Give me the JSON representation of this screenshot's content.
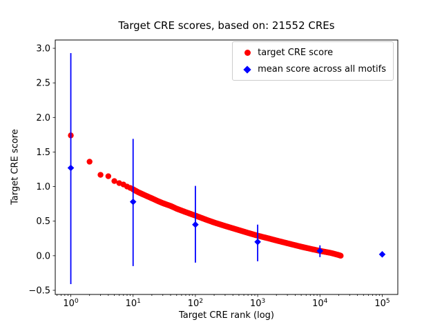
{
  "chart_data": {
    "type": "scatter",
    "title": "Target CRE scores, based on: 21552 CREs",
    "xlabel": "Target CRE rank (log)",
    "ylabel": "Target CRE score",
    "x_scale": "log",
    "grid": false,
    "background": "#ffffff",
    "total_cres": 21552,
    "xlim_log10": [
      -0.25,
      5.25
    ],
    "ylim": [
      -0.56,
      3.12
    ],
    "x_ticks": [
      1,
      10,
      100,
      1000,
      10000,
      100000
    ],
    "y_ticks": [
      -0.5,
      0.0,
      0.5,
      1.0,
      1.5,
      2.0,
      2.5,
      3.0
    ],
    "legend": {
      "position": "upper right"
    },
    "series": [
      {
        "name": "target CRE score",
        "marker": "circle",
        "color": "#ff0000",
        "sampling": "anchor points read from the dense 21552-point rank curve",
        "points": [
          [
            1,
            1.74
          ],
          [
            2,
            1.36
          ],
          [
            3,
            1.17
          ],
          [
            4,
            1.15
          ],
          [
            5,
            1.08
          ],
          [
            6,
            1.05
          ],
          [
            7,
            1.03
          ],
          [
            8,
            1.0
          ],
          [
            9,
            0.98
          ],
          [
            10,
            0.96
          ],
          [
            12,
            0.92
          ],
          [
            15,
            0.88
          ],
          [
            20,
            0.83
          ],
          [
            25,
            0.79
          ],
          [
            30,
            0.76
          ],
          [
            40,
            0.72
          ],
          [
            50,
            0.68
          ],
          [
            70,
            0.63
          ],
          [
            100,
            0.58
          ],
          [
            150,
            0.52
          ],
          [
            200,
            0.48
          ],
          [
            300,
            0.43
          ],
          [
            500,
            0.37
          ],
          [
            700,
            0.33
          ],
          [
            1000,
            0.29
          ],
          [
            1500,
            0.25
          ],
          [
            2000,
            0.22
          ],
          [
            3000,
            0.18
          ],
          [
            5000,
            0.13
          ],
          [
            7000,
            0.1
          ],
          [
            10000,
            0.07
          ],
          [
            15000,
            0.04
          ],
          [
            20000,
            0.01
          ],
          [
            21552,
            0.0
          ]
        ]
      },
      {
        "name": "mean score across all motifs",
        "marker": "diamond",
        "color": "#0000ff",
        "points": [
          {
            "x": 1,
            "y": 1.27,
            "ylo": -0.41,
            "yhi": 2.93
          },
          {
            "x": 10,
            "y": 0.78,
            "ylo": -0.15,
            "yhi": 1.69
          },
          {
            "x": 100,
            "y": 0.45,
            "ylo": -0.1,
            "yhi": 1.01
          },
          {
            "x": 1000,
            "y": 0.2,
            "ylo": -0.08,
            "yhi": 0.45
          },
          {
            "x": 10000,
            "y": 0.07,
            "ylo": -0.02,
            "yhi": 0.15
          },
          {
            "x": 100000,
            "y": 0.02,
            "ylo": 0.01,
            "yhi": 0.03
          }
        ]
      }
    ]
  }
}
